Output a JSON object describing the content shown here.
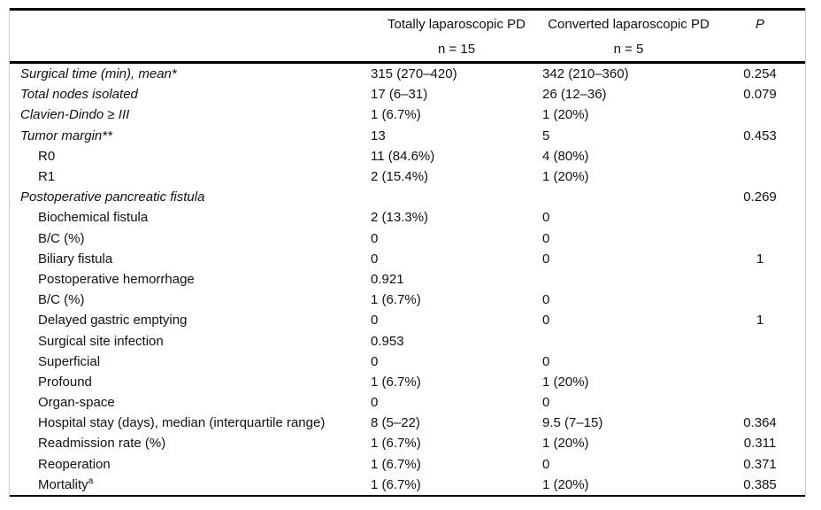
{
  "colors": {
    "background": "#ffffff",
    "rule": "#000000",
    "side_border": "#cccccc",
    "text": "#111111"
  },
  "table": {
    "columns": {
      "group1_label": "Totally laparoscopic PD",
      "group1_n": "n = 15",
      "group2_label": "Converted laparoscopic PD",
      "group2_n": "n = 5",
      "p_label": "P"
    },
    "rows": [
      {
        "label": "Surgical time (min), mean*",
        "sup": "",
        "italic": true,
        "indent": false,
        "c1": "315 (270–420)",
        "c2": "342 (210–360)",
        "p": "0.254"
      },
      {
        "label": "Total nodes isolated",
        "sup": "",
        "italic": true,
        "indent": false,
        "c1": "17 (6–31)",
        "c2": "26 (12–36)",
        "p": "0.079"
      },
      {
        "label": "Clavien-Dindo ≥ III",
        "sup": "",
        "italic": true,
        "indent": false,
        "c1": "1 (6.7%)",
        "c2": "1 (20%)",
        "p": ""
      },
      {
        "label": "Tumor margin**",
        "sup": "",
        "italic": true,
        "indent": false,
        "c1": "13",
        "c2": "5",
        "p": "0.453"
      },
      {
        "label": "R0",
        "sup": "",
        "italic": false,
        "indent": true,
        "c1": "11 (84.6%)",
        "c2": "4 (80%)",
        "p": ""
      },
      {
        "label": "R1",
        "sup": "",
        "italic": false,
        "indent": true,
        "c1": "2 (15.4%)",
        "c2": "1 (20%)",
        "p": ""
      },
      {
        "label": "Postoperative pancreatic fistula",
        "sup": "",
        "italic": true,
        "indent": false,
        "c1": "",
        "c2": "",
        "p": "0.269"
      },
      {
        "label": "Biochemical fistula",
        "sup": "",
        "italic": false,
        "indent": true,
        "c1": "2 (13.3%)",
        "c2": "0",
        "p": ""
      },
      {
        "label": "B/C (%)",
        "sup": "",
        "italic": false,
        "indent": true,
        "c1": "0",
        "c2": "0",
        "p": ""
      },
      {
        "label": "Biliary fistula",
        "sup": "",
        "italic": false,
        "indent": true,
        "c1": "0",
        "c2": "0",
        "p": "1"
      },
      {
        "label": "Postoperative hemorrhage",
        "sup": "",
        "italic": false,
        "indent": true,
        "c1": "0.921",
        "c2": "",
        "p": ""
      },
      {
        "label": "B/C (%)",
        "sup": "",
        "italic": false,
        "indent": true,
        "c1": "1 (6.7%)",
        "c2": "0",
        "p": ""
      },
      {
        "label": "Delayed gastric emptying",
        "sup": "",
        "italic": false,
        "indent": true,
        "c1": "0",
        "c2": "0",
        "p": "1"
      },
      {
        "label": "Surgical site infection",
        "sup": "",
        "italic": false,
        "indent": true,
        "c1": "0.953",
        "c2": "",
        "p": ""
      },
      {
        "label": "Superficial",
        "sup": "",
        "italic": false,
        "indent": true,
        "c1": "0",
        "c2": "0",
        "p": ""
      },
      {
        "label": "Profound",
        "sup": "",
        "italic": false,
        "indent": true,
        "c1": "1 (6.7%)",
        "c2": "1 (20%)",
        "p": ""
      },
      {
        "label": "Organ-space",
        "sup": "",
        "italic": false,
        "indent": true,
        "c1": "0",
        "c2": "0",
        "p": ""
      },
      {
        "label": "Hospital stay (days), median (interquartile range)",
        "sup": "",
        "italic": false,
        "indent": true,
        "c1": "8 (5–22)",
        "c2": "9.5 (7–15)",
        "p": "0.364"
      },
      {
        "label": "Readmission rate (%)",
        "sup": "",
        "italic": false,
        "indent": true,
        "c1": "1 (6.7%)",
        "c2": "1 (20%)",
        "p": "0.311"
      },
      {
        "label": "Reoperation",
        "sup": "",
        "italic": false,
        "indent": true,
        "c1": "1 (6.7%)",
        "c2": "0",
        "p": "0.371"
      },
      {
        "label": "Mortality",
        "sup": "a",
        "italic": false,
        "indent": true,
        "c1": "1 (6.7%)",
        "c2": "1 (20%)",
        "p": "0.385"
      }
    ]
  }
}
